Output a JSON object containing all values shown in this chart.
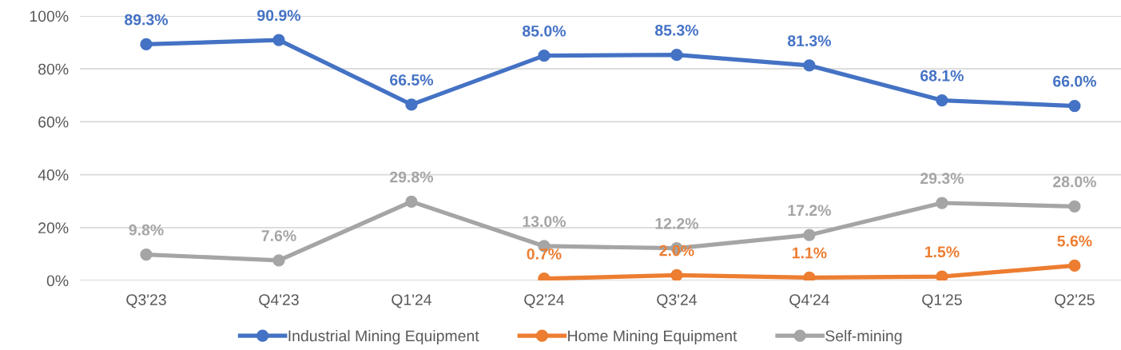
{
  "chart_data": {
    "type": "line",
    "categories": [
      "Q3'23",
      "Q4'23",
      "Q1'24",
      "Q2'24",
      "Q3'24",
      "Q4'24",
      "Q1'25",
      "Q2'25"
    ],
    "series": [
      {
        "name": "Industrial Mining Equipment",
        "color": "#4472c4",
        "values": [
          89.3,
          90.9,
          66.5,
          85.0,
          85.3,
          81.3,
          68.1,
          66.0
        ],
        "value_labels": [
          "89.3%",
          "90.9%",
          "66.5%",
          "85.0%",
          "85.3%",
          "81.3%",
          "68.1%",
          "66.0%"
        ]
      },
      {
        "name": "Home Mining Equipment",
        "color": "#ed7d31",
        "values": [
          null,
          null,
          null,
          0.7,
          2.0,
          1.1,
          1.5,
          5.6
        ],
        "value_labels": [
          null,
          null,
          null,
          "0.7%",
          "2.0%",
          "1.1%",
          "1.5%",
          "5.6%"
        ]
      },
      {
        "name": "Self-mining",
        "color": "#a5a5a5",
        "values": [
          9.8,
          7.6,
          29.8,
          13.0,
          12.2,
          17.2,
          29.3,
          28.0
        ],
        "value_labels": [
          "9.8%",
          "7.6%",
          "29.8%",
          "13.0%",
          "12.2%",
          "17.2%",
          "29.3%",
          "28.0%"
        ]
      }
    ],
    "ylim": [
      0,
      100
    ],
    "yticks": [
      {
        "value": 0,
        "label": "0%"
      },
      {
        "value": 20,
        "label": "20%"
      },
      {
        "value": 40,
        "label": "40%"
      },
      {
        "value": 60,
        "label": "60%"
      },
      {
        "value": 80,
        "label": "80%"
      },
      {
        "value": 100,
        "label": "100%"
      }
    ],
    "grid": "y",
    "legend": "bottom",
    "marker": "circle",
    "line_style": "solid"
  }
}
